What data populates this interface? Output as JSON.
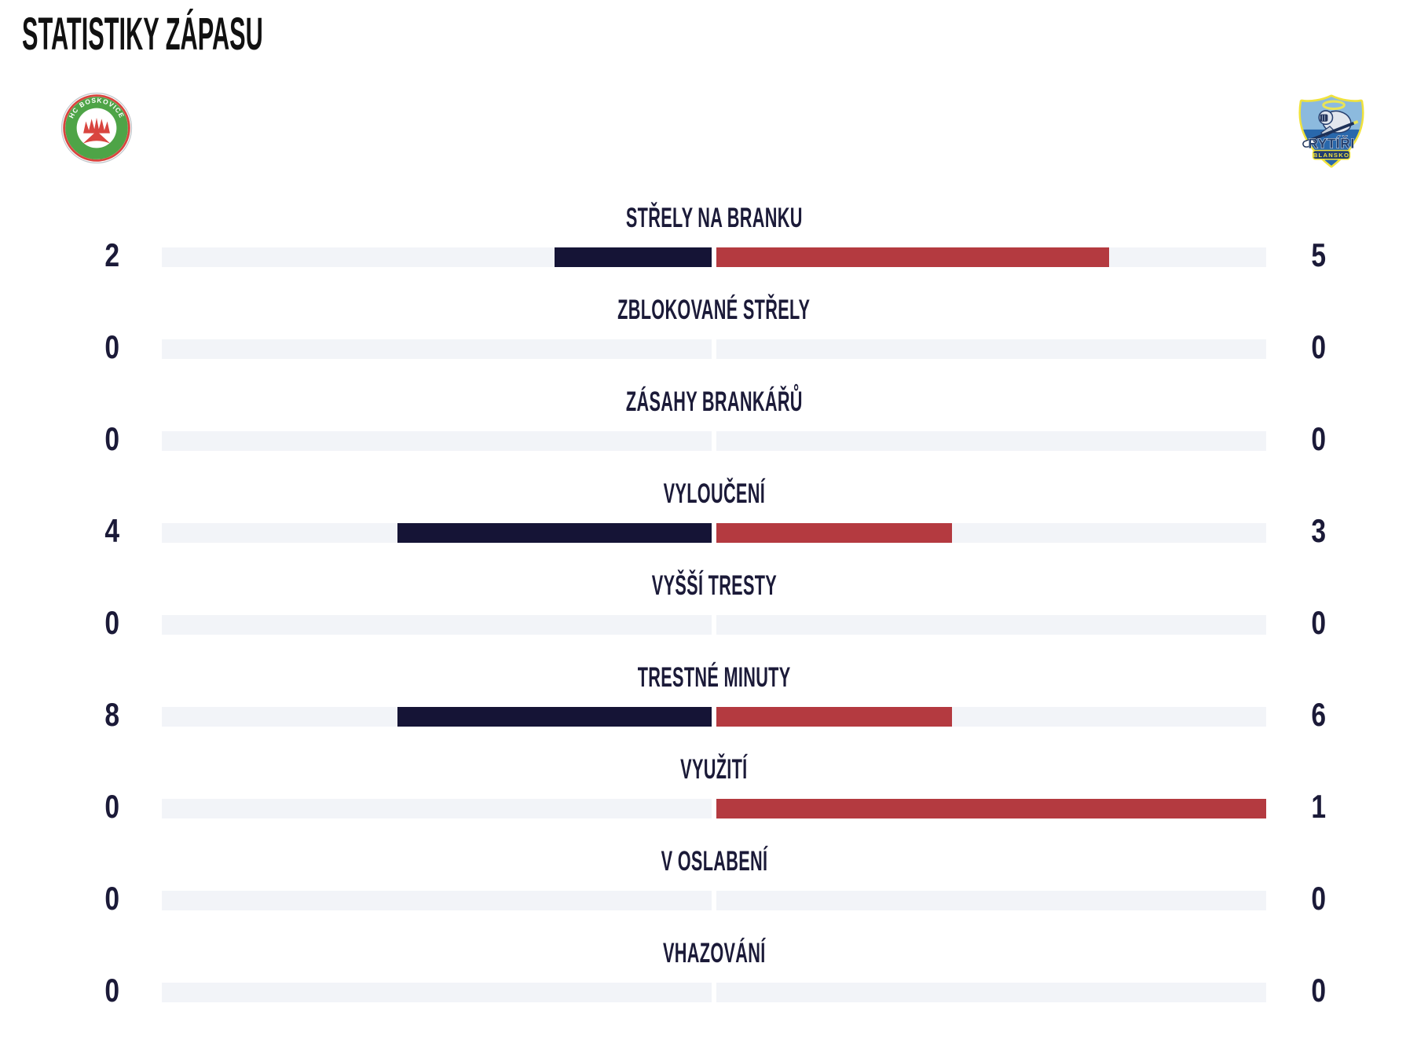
{
  "page": {
    "title": "STATISTIKY ZÁPASU"
  },
  "teams": {
    "home": {
      "name": "HC Boskovice",
      "bar_color": "#151436"
    },
    "away": {
      "name": "Rytíři Blansko",
      "bar_color": "#b43a40"
    }
  },
  "colors": {
    "track": "#f2f4f8",
    "text_navy": "#1b1a38",
    "title_black": "#111111",
    "home_logo_green": "#4ea447",
    "home_logo_red": "#d9453f",
    "away_logo_yellow": "#f0e23c",
    "away_logo_blue_light": "#8cbade",
    "away_logo_blue": "#2968ac",
    "away_logo_navy": "#223c6e"
  },
  "logos": {
    "home": {
      "arc_text": "HC BOSKOVICE"
    },
    "away": {
      "line1": "RYTÍŘI",
      "line2": "BLANSKO"
    }
  },
  "stats": [
    {
      "label": "STŘELY NA BRANKU",
      "home": 2,
      "away": 5
    },
    {
      "label": "ZBLOKOVANÉ STŘELY",
      "home": 0,
      "away": 0
    },
    {
      "label": "ZÁSAHY BRANKÁŘŮ",
      "home": 0,
      "away": 0
    },
    {
      "label": "VYLOUČENÍ",
      "home": 4,
      "away": 3
    },
    {
      "label": "VYŠŠÍ TRESTY",
      "home": 0,
      "away": 0
    },
    {
      "label": "TRESTNÉ MINUTY",
      "home": 8,
      "away": 6
    },
    {
      "label": "VYUŽITÍ",
      "home": 0,
      "away": 1
    },
    {
      "label": "V OSLABENÍ",
      "home": 0,
      "away": 0
    },
    {
      "label": "VHAZOVÁNÍ",
      "home": 0,
      "away": 0
    }
  ],
  "chart_data": {
    "type": "bar",
    "title": "STATISTIKY ZÁPASU",
    "categories": [
      "STŘELY NA BRANKU",
      "ZBLOKOVANÉ STŘELY",
      "ZÁSAHY BRANKÁŘŮ",
      "VYLOUČENÍ",
      "VYŠŠÍ TRESTY",
      "TRESTNÉ MINUTY",
      "VYUŽITÍ",
      "V OSLABENÍ",
      "VHAZOVÁNÍ"
    ],
    "series": [
      {
        "name": "HC Boskovice",
        "color": "#151436",
        "values": [
          2,
          0,
          0,
          4,
          0,
          8,
          0,
          0,
          0
        ]
      },
      {
        "name": "Rytíři Blansko",
        "color": "#b43a40",
        "values": [
          5,
          0,
          0,
          3,
          0,
          6,
          1,
          0,
          0
        ]
      }
    ],
    "layout": "diverging-from-center",
    "bar_scaling": "each side fills value/(home+away) of its half; empty when both are 0",
    "legend_position": "team logos top-left and top-right",
    "grid": false
  }
}
